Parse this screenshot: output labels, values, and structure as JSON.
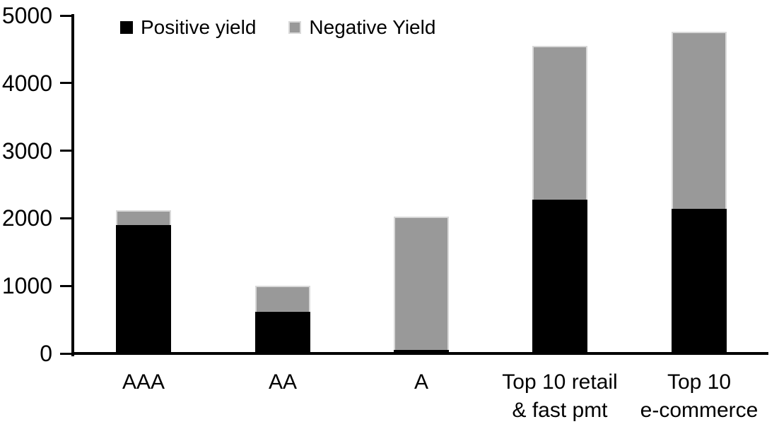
{
  "chart_data": {
    "type": "bar",
    "stacked": true,
    "title": "",
    "xlabel": "",
    "ylabel": "",
    "categories": [
      "AAA",
      "AA",
      "A",
      "Top 10 retail\n& fast pmt",
      "Top 10\ne-commerce"
    ],
    "series": [
      {
        "name": "Positive yield",
        "color": "#000000",
        "values": [
          1900,
          620,
          50,
          2280,
          2140
        ]
      },
      {
        "name": "Negative Yield",
        "color": "#999999",
        "values": [
          220,
          380,
          1980,
          2270,
          2620
        ]
      }
    ],
    "totals": [
      2120,
      1000,
      2030,
      4550,
      4760
    ],
    "ylim": [
      0,
      5000
    ],
    "yticks": [
      0,
      1000,
      2000,
      3000,
      4000,
      5000
    ],
    "grid": false,
    "legend_position": "top-left"
  },
  "colors": {
    "positive": "#000000",
    "negative": "#999999",
    "negative_border": "#d9d9d9",
    "axis": "#000000",
    "background": "#ffffff",
    "text": "#000000"
  }
}
